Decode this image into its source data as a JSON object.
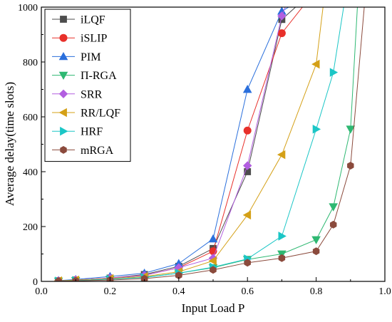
{
  "chart_data": {
    "type": "line",
    "title": "",
    "xlabel": "Input Load P",
    "ylabel": "Average delay(time slots)",
    "xlim": [
      0.0,
      1.0
    ],
    "ylim": [
      0,
      1000
    ],
    "xticks": [
      0.0,
      0.2,
      0.4,
      0.6,
      0.8,
      1.0
    ],
    "xtick_labels": [
      "0.0",
      "0.2",
      "0.4",
      "0.6",
      "0.8",
      "1.0"
    ],
    "yticks": [
      0,
      200,
      400,
      600,
      800,
      1000
    ],
    "ytick_labels": [
      "0",
      "200",
      "400",
      "600",
      "800",
      "1000"
    ],
    "grid": false,
    "legend_position": "top-left",
    "series": [
      {
        "name": "iLQF",
        "color": "#4d4d4d",
        "marker": "square",
        "x": [
          0.05,
          0.1,
          0.2,
          0.3,
          0.4,
          0.5,
          0.6,
          0.7,
          0.74
        ],
        "y": [
          2,
          5,
          12,
          25,
          55,
          120,
          400,
          955,
          1000
        ]
      },
      {
        "name": "iSLIP",
        "color": "#e8302a",
        "marker": "circle",
        "x": [
          0.05,
          0.1,
          0.2,
          0.3,
          0.4,
          0.5,
          0.6,
          0.7,
          0.76
        ],
        "y": [
          2,
          5,
          12,
          22,
          50,
          110,
          550,
          905,
          1000
        ]
      },
      {
        "name": "PIM",
        "color": "#2a6fdc",
        "marker": "triangle-up",
        "x": [
          0.05,
          0.1,
          0.2,
          0.3,
          0.4,
          0.5,
          0.6,
          0.7,
          0.72
        ],
        "y": [
          3,
          7,
          18,
          30,
          65,
          155,
          700,
          985,
          1000
        ]
      },
      {
        "name": "Π-RGA",
        "color": "#2eb872",
        "marker": "triangle-down",
        "x": [
          0.05,
          0.1,
          0.2,
          0.3,
          0.4,
          0.5,
          0.6,
          0.7,
          0.8,
          0.85,
          0.9,
          0.92
        ],
        "y": [
          1,
          3,
          8,
          15,
          30,
          50,
          80,
          100,
          152,
          272,
          555,
          1000
        ]
      },
      {
        "name": "SRR",
        "color": "#b25ee0",
        "marker": "diamond",
        "x": [
          0.05,
          0.1,
          0.2,
          0.3,
          0.4,
          0.5,
          0.6,
          0.7,
          0.71
        ],
        "y": [
          2,
          5,
          12,
          22,
          50,
          85,
          422,
          968,
          1000
        ]
      },
      {
        "name": "RR/LQF",
        "color": "#d4a017",
        "marker": "triangle-left",
        "x": [
          0.05,
          0.1,
          0.2,
          0.3,
          0.4,
          0.5,
          0.6,
          0.7,
          0.8,
          0.82
        ],
        "y": [
          2,
          5,
          10,
          18,
          35,
          75,
          242,
          462,
          792,
          1000
        ]
      },
      {
        "name": "HRF",
        "color": "#1bc6c6",
        "marker": "triangle-right",
        "x": [
          0.05,
          0.1,
          0.2,
          0.3,
          0.4,
          0.5,
          0.6,
          0.7,
          0.8,
          0.85,
          0.88
        ],
        "y": [
          1,
          3,
          8,
          14,
          30,
          52,
          82,
          165,
          555,
          762,
          1000
        ]
      },
      {
        "name": "mRGA",
        "color": "#8b4a3c",
        "marker": "hexagon",
        "x": [
          0.05,
          0.1,
          0.2,
          0.3,
          0.4,
          0.5,
          0.6,
          0.7,
          0.8,
          0.85,
          0.9,
          0.94
        ],
        "y": [
          1,
          2,
          5,
          10,
          22,
          42,
          68,
          85,
          110,
          207,
          422,
          1000
        ]
      }
    ]
  }
}
